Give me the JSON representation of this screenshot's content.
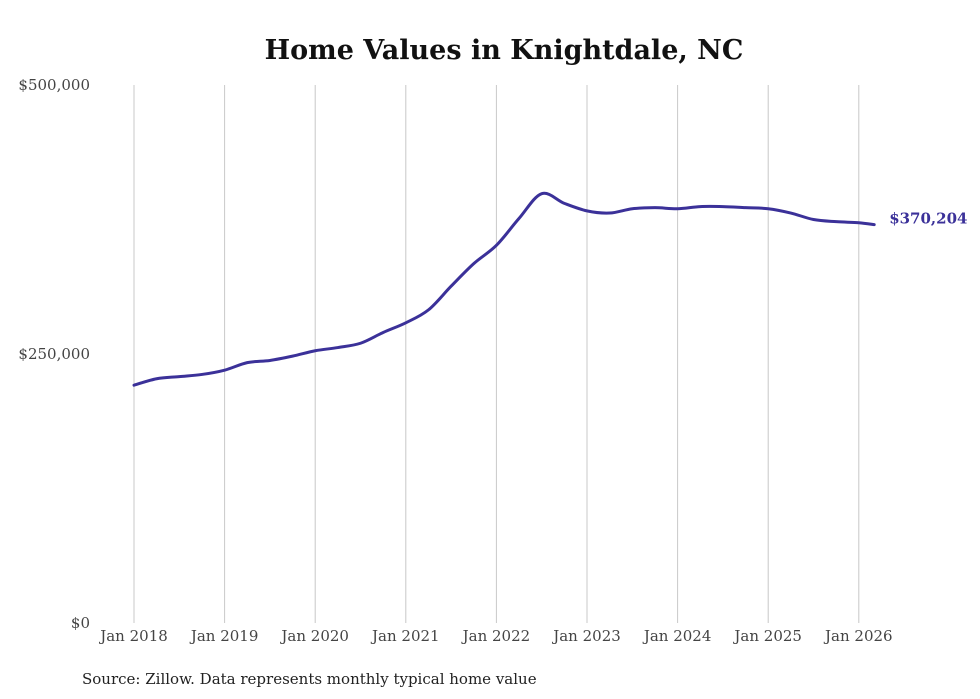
{
  "chart_data": {
    "type": "line",
    "title": "Home Values in Knightdale, NC",
    "xlabel": "",
    "ylabel": "",
    "source": "Source: Zillow. Data represents monthly typical home value",
    "ylim": [
      0,
      500000
    ],
    "xlim": [
      2018,
      2026.2
    ],
    "grid": "vertical",
    "y_ticks": [
      {
        "value": 0,
        "label": "$0"
      },
      {
        "value": 250000,
        "label": "$250,000"
      },
      {
        "value": 500000,
        "label": "$500,000"
      }
    ],
    "x_ticks": [
      {
        "value": 2018,
        "label": "Jan 2018"
      },
      {
        "value": 2019,
        "label": "Jan 2019"
      },
      {
        "value": 2020,
        "label": "Jan 2020"
      },
      {
        "value": 2021,
        "label": "Jan 2021"
      },
      {
        "value": 2022,
        "label": "Jan 2022"
      },
      {
        "value": 2023,
        "label": "Jan 2023"
      },
      {
        "value": 2024,
        "label": "Jan 2024"
      },
      {
        "value": 2025,
        "label": "Jan 2025"
      },
      {
        "value": 2026,
        "label": "Jan 2026"
      }
    ],
    "series": [
      {
        "name": "Typical home value",
        "color": "#3b3199",
        "end_label": "$370,204",
        "x": [
          2018,
          2018.25,
          2018.5,
          2018.75,
          2019,
          2019.25,
          2019.5,
          2019.75,
          2020,
          2020.25,
          2020.5,
          2020.75,
          2021,
          2021.25,
          2021.5,
          2021.75,
          2022,
          2022.25,
          2022.5,
          2022.75,
          2023,
          2023.25,
          2023.5,
          2023.75,
          2024,
          2024.25,
          2024.5,
          2024.75,
          2025,
          2025.25,
          2025.5,
          2025.75,
          2026,
          2026.17
        ],
        "values": [
          221000,
          227000,
          229000,
          231000,
          235000,
          242000,
          244000,
          248000,
          253000,
          256000,
          260000,
          270000,
          279000,
          291000,
          313000,
          334000,
          351000,
          376000,
          399000,
          390000,
          383000,
          381000,
          385000,
          386000,
          385000,
          387000,
          387000,
          386000,
          385000,
          381000,
          375000,
          373000,
          372000,
          370204
        ]
      }
    ]
  }
}
